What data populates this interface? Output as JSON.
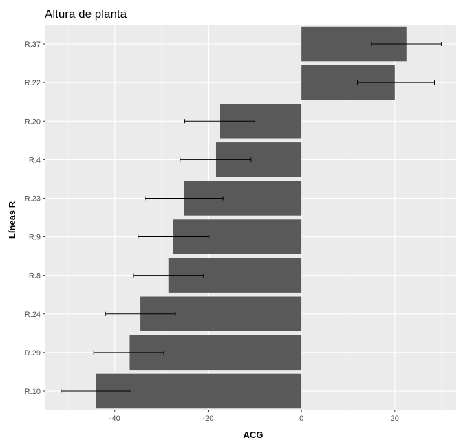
{
  "chart_data": {
    "type": "bar",
    "orientation": "horizontal",
    "title": "Altura de planta",
    "xlabel": "ACG",
    "ylabel": "Líneas R",
    "xlim": [
      -55,
      33
    ],
    "xticks": [
      -40,
      -20,
      0,
      20
    ],
    "xtick_labels": [
      "-40",
      "-20",
      "0",
      "20"
    ],
    "grid": true,
    "background": "#ebebeb",
    "bar_color": "#595959",
    "categories": [
      "R.37",
      "R.22",
      "R.20",
      "R.4",
      "R.23",
      "R.9",
      "R.8",
      "R.24",
      "R.29",
      "R.10"
    ],
    "values": [
      22.5,
      20.0,
      -17.5,
      -18.3,
      -25.2,
      -27.5,
      -28.5,
      -34.5,
      -36.8,
      -44.0
    ],
    "error_low": [
      15.0,
      12.0,
      -25.0,
      -26.0,
      -33.5,
      -35.0,
      -36.0,
      -42.0,
      -44.5,
      -51.5
    ],
    "error_high": [
      30.0,
      28.5,
      -10.0,
      -10.8,
      -16.8,
      -19.8,
      -21.0,
      -27.0,
      -29.5,
      -36.5
    ]
  }
}
